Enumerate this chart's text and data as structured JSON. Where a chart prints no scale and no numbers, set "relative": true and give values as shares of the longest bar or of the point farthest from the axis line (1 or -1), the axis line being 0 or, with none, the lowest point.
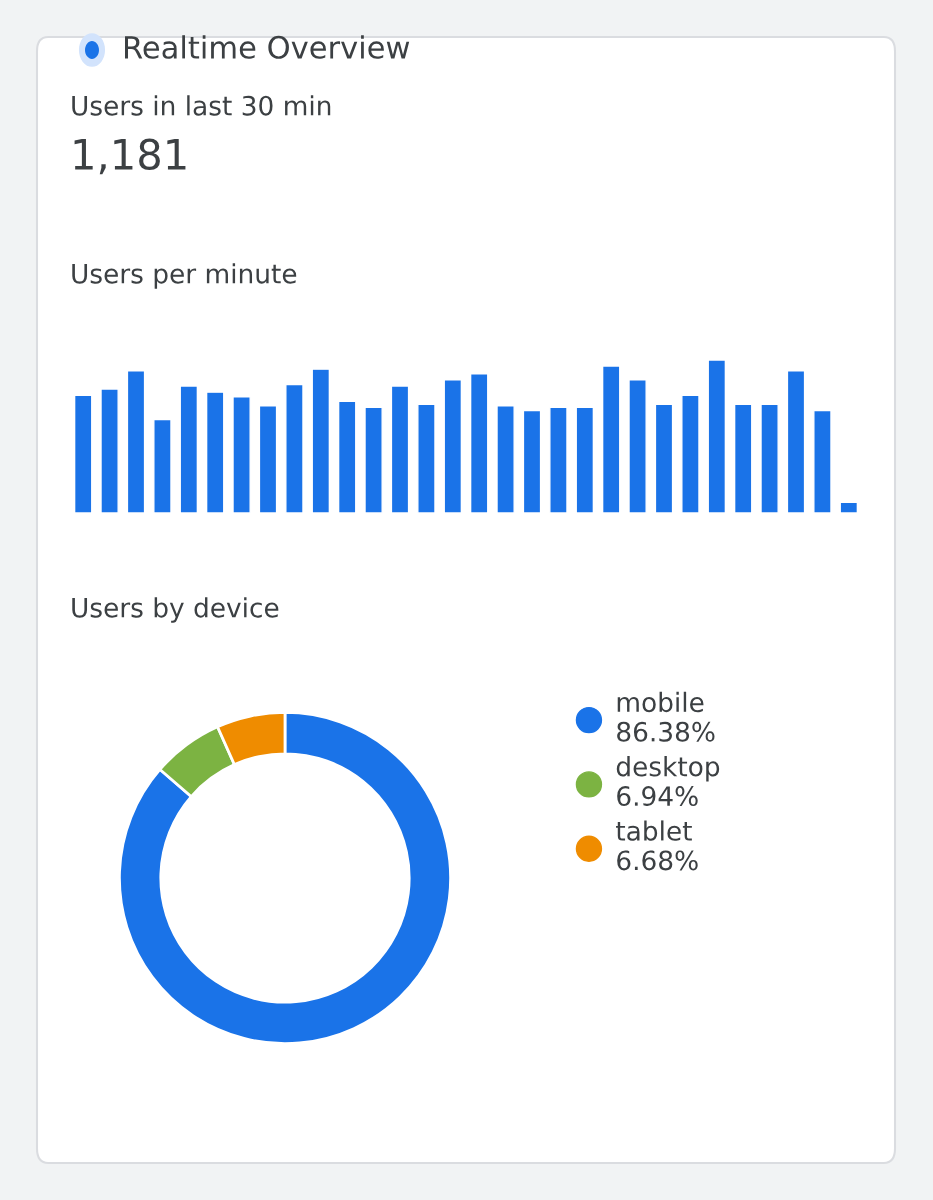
{
  "chart_data": [
    {
      "type": "other",
      "title": "Realtime Overview",
      "annotations": [
        "Users in last 30 min",
        "1,181"
      ]
    },
    {
      "type": "bar",
      "title": "Users per minute",
      "relative": true,
      "color": "#1a73e8",
      "categories": [
        null,
        null,
        null,
        null,
        null,
        null,
        null,
        null,
        null,
        null,
        null,
        null,
        null,
        null,
        null,
        null,
        null,
        null,
        null,
        null,
        null,
        null,
        null,
        null,
        null,
        null,
        null,
        null,
        null,
        null
      ],
      "values": [
        0.77,
        0.81,
        0.93,
        0.61,
        0.83,
        0.79,
        0.76,
        0.7,
        0.84,
        0.94,
        0.73,
        0.69,
        0.83,
        0.71,
        0.87,
        0.91,
        0.7,
        0.67,
        0.69,
        0.69,
        0.96,
        0.87,
        0.71,
        0.77,
        1,
        0.71,
        0.71,
        0.93,
        0.67,
        0.07
      ],
      "grid": false
    },
    {
      "type": "donut",
      "title": "Users by device",
      "categories": [
        "mobile",
        "desktop",
        "tablet"
      ],
      "values": [
        86.38,
        6.94,
        6.68
      ],
      "colors": [
        "#1a73e8",
        "#7cb342",
        "#ef8c00"
      ],
      "value_labels": [
        "86.38%",
        "6.94%",
        "6.68%"
      ],
      "legend": "right"
    }
  ]
}
